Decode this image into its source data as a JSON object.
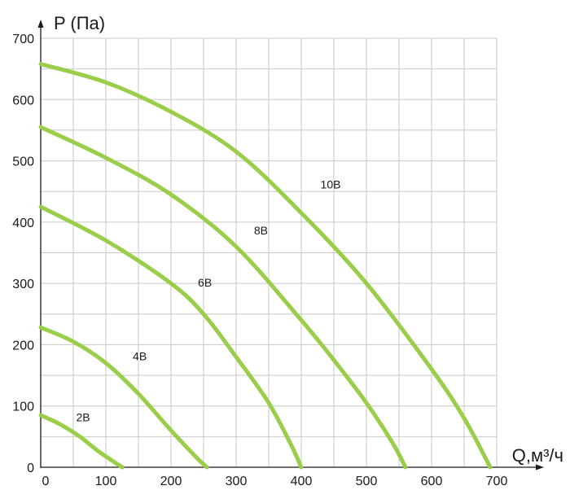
{
  "chart_data": {
    "type": "line",
    "xlabel": "Q,м³/ч",
    "ylabel": "P (Па)",
    "xlim": [
      0,
      700
    ],
    "ylim": [
      0,
      700
    ],
    "x_ticks": [
      0,
      100,
      200,
      300,
      400,
      500,
      600,
      700
    ],
    "y_ticks": [
      0,
      100,
      200,
      300,
      400,
      500,
      600,
      700
    ],
    "grid": true,
    "curve_color": "#9acd4a",
    "series": [
      {
        "name": "2В",
        "x": [
          0,
          30,
          60,
          90,
          125
        ],
        "y": [
          85,
          70,
          50,
          25,
          0
        ]
      },
      {
        "name": "4В",
        "x": [
          0,
          50,
          100,
          150,
          200,
          240,
          255
        ],
        "y": [
          228,
          205,
          170,
          120,
          60,
          15,
          0
        ]
      },
      {
        "name": "6В",
        "x": [
          0,
          100,
          200,
          250,
          300,
          350,
          385,
          400
        ],
        "y": [
          425,
          370,
          300,
          250,
          180,
          105,
          35,
          0
        ]
      },
      {
        "name": "8В",
        "x": [
          0,
          100,
          200,
          300,
          400,
          450,
          500,
          540,
          560
        ],
        "y": [
          555,
          505,
          445,
          360,
          240,
          175,
          105,
          40,
          0
        ]
      },
      {
        "name": "10В",
        "x": [
          0,
          100,
          200,
          300,
          400,
          500,
          600,
          650,
          690
        ],
        "y": [
          658,
          628,
          580,
          515,
          415,
          300,
          160,
          80,
          0
        ]
      }
    ],
    "labels": [
      {
        "text": "2В",
        "x": 65,
        "y": 75
      },
      {
        "text": "4В",
        "x": 152,
        "y": 175
      },
      {
        "text": "6В",
        "x": 252,
        "y": 295
      },
      {
        "text": "8В",
        "x": 338,
        "y": 380
      },
      {
        "text": "10В",
        "x": 445,
        "y": 455
      }
    ]
  }
}
